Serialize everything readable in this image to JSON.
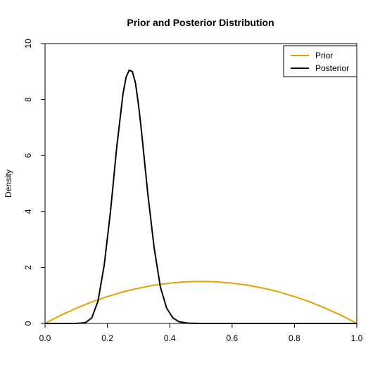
{
  "chart_data": {
    "type": "line",
    "title": "Prior and Posterior Distribution",
    "xlabel": "",
    "ylabel": "Density",
    "xlim": [
      0,
      1
    ],
    "ylim": [
      0,
      10
    ],
    "x_ticks": [
      "0.0",
      "0.2",
      "0.4",
      "0.6",
      "0.8",
      "1.0"
    ],
    "y_ticks": [
      "0",
      "2",
      "4",
      "6",
      "8",
      "10"
    ],
    "legend_position": "top-right",
    "grid": false,
    "series": [
      {
        "name": "Prior",
        "color": "#E69F00",
        "x": [
          0,
          0.02,
          0.05,
          0.1,
          0.15,
          0.2,
          0.25,
          0.3,
          0.35,
          0.4,
          0.45,
          0.5,
          0.55,
          0.6,
          0.65,
          0.7,
          0.75,
          0.8,
          0.85,
          0.9,
          0.95,
          0.98,
          1.0
        ],
        "y": [
          0,
          0.12,
          0.29,
          0.54,
          0.77,
          0.96,
          1.13,
          1.26,
          1.37,
          1.44,
          1.49,
          1.5,
          1.49,
          1.44,
          1.37,
          1.26,
          1.13,
          0.96,
          0.77,
          0.54,
          0.29,
          0.12,
          0
        ]
      },
      {
        "name": "Posterior",
        "color": "#000000",
        "x": [
          0,
          0.1,
          0.13,
          0.15,
          0.17,
          0.19,
          0.21,
          0.23,
          0.25,
          0.26,
          0.27,
          0.28,
          0.29,
          0.3,
          0.31,
          0.33,
          0.35,
          0.37,
          0.39,
          0.41,
          0.43,
          0.46,
          0.5,
          0.6,
          1.0
        ],
        "y": [
          0,
          0,
          0.03,
          0.2,
          0.8,
          2.1,
          4.0,
          6.3,
          8.2,
          8.8,
          9.05,
          9.0,
          8.6,
          7.8,
          6.8,
          4.6,
          2.7,
          1.3,
          0.55,
          0.2,
          0.06,
          0.01,
          0,
          0,
          0
        ]
      }
    ]
  }
}
